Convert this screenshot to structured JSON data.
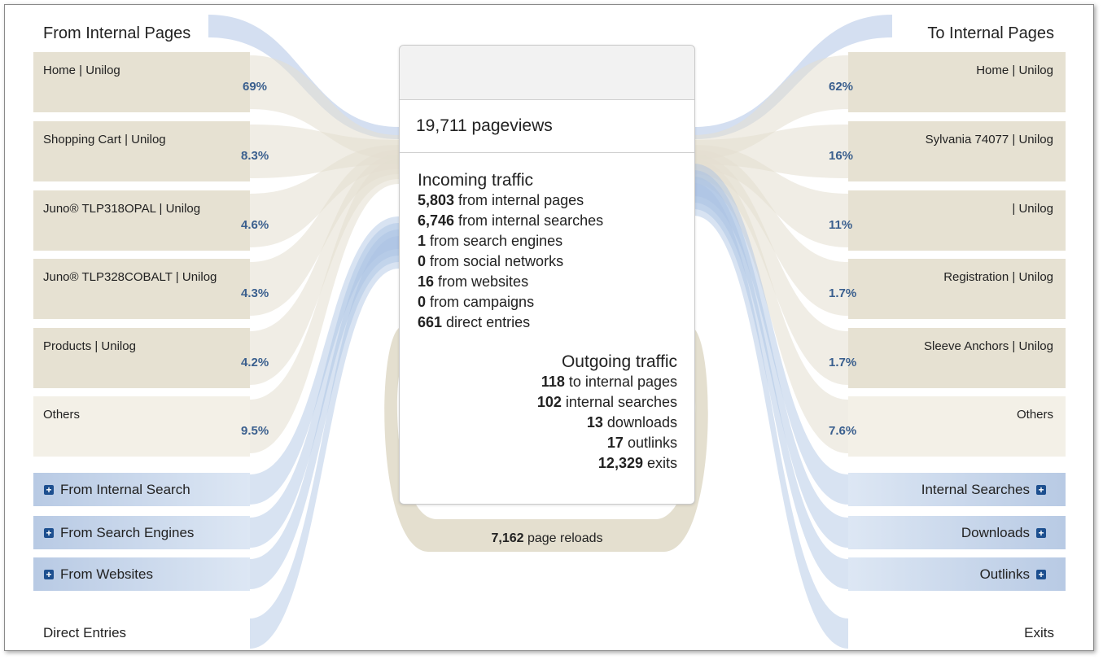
{
  "left": {
    "title": "From Internal Pages",
    "pages": [
      {
        "label": "Home | Unilog",
        "pct": "69%"
      },
      {
        "label": "Shopping Cart | Unilog",
        "pct": "8.3%"
      },
      {
        "label": "Juno® TLP318OPAL | Unilog",
        "pct": "4.6%"
      },
      {
        "label": "Juno® TLP328COBALT | Unilog",
        "pct": "4.3%"
      },
      {
        "label": "Products | Unilog",
        "pct": "4.2%"
      },
      {
        "label": "Others",
        "pct": "9.5%"
      }
    ],
    "sections": [
      {
        "label": "From Internal Search"
      },
      {
        "label": "From Search Engines"
      },
      {
        "label": "From Websites"
      }
    ],
    "direct": "Direct Entries"
  },
  "right": {
    "title": "To Internal Pages",
    "pages": [
      {
        "label": "Home | Unilog",
        "pct": "62%"
      },
      {
        "label": "Sylvania 74077 | Unilog",
        "pct": "16%"
      },
      {
        "label": "| Unilog",
        "pct": "11%"
      },
      {
        "label": "Registration | Unilog",
        "pct": "1.7%"
      },
      {
        "label": "Sleeve Anchors | Unilog",
        "pct": "1.7%"
      },
      {
        "label": "Others",
        "pct": "7.6%"
      }
    ],
    "sections": [
      {
        "label": "Internal Searches"
      },
      {
        "label": "Downloads"
      },
      {
        "label": "Outlinks"
      }
    ],
    "exits": "Exits"
  },
  "center": {
    "pageviews": "19,711 pageviews",
    "incoming_title": "Incoming traffic",
    "incoming": [
      {
        "value": "5,803",
        "text": " from internal pages"
      },
      {
        "value": "6,746",
        "text": " from internal searches"
      },
      {
        "value": "1",
        "text": " from search engines"
      },
      {
        "value": "0",
        "text": " from social networks"
      },
      {
        "value": "16",
        "text": " from websites"
      },
      {
        "value": "0",
        "text": " from campaigns"
      },
      {
        "value": "661",
        "text": " direct entries"
      }
    ],
    "outgoing_title": "Outgoing traffic",
    "outgoing": [
      {
        "value": "118",
        "text": " to internal pages"
      },
      {
        "value": "102",
        "text": " internal searches"
      },
      {
        "value": "13",
        "text": " downloads"
      },
      {
        "value": "17",
        "text": " outlinks"
      },
      {
        "value": "12,329",
        "text": " exits"
      }
    ],
    "reloads_value": "7,162",
    "reloads_text": " page reloads"
  },
  "colors": {
    "page_box": "#e6e1d2",
    "others_box": "#f3f0e7",
    "blue_flow": "#a9c0e3",
    "tan_flow": "#e4dfcf",
    "percent_text": "#3a5f8e",
    "plus_icon": "#1d4f8f"
  }
}
